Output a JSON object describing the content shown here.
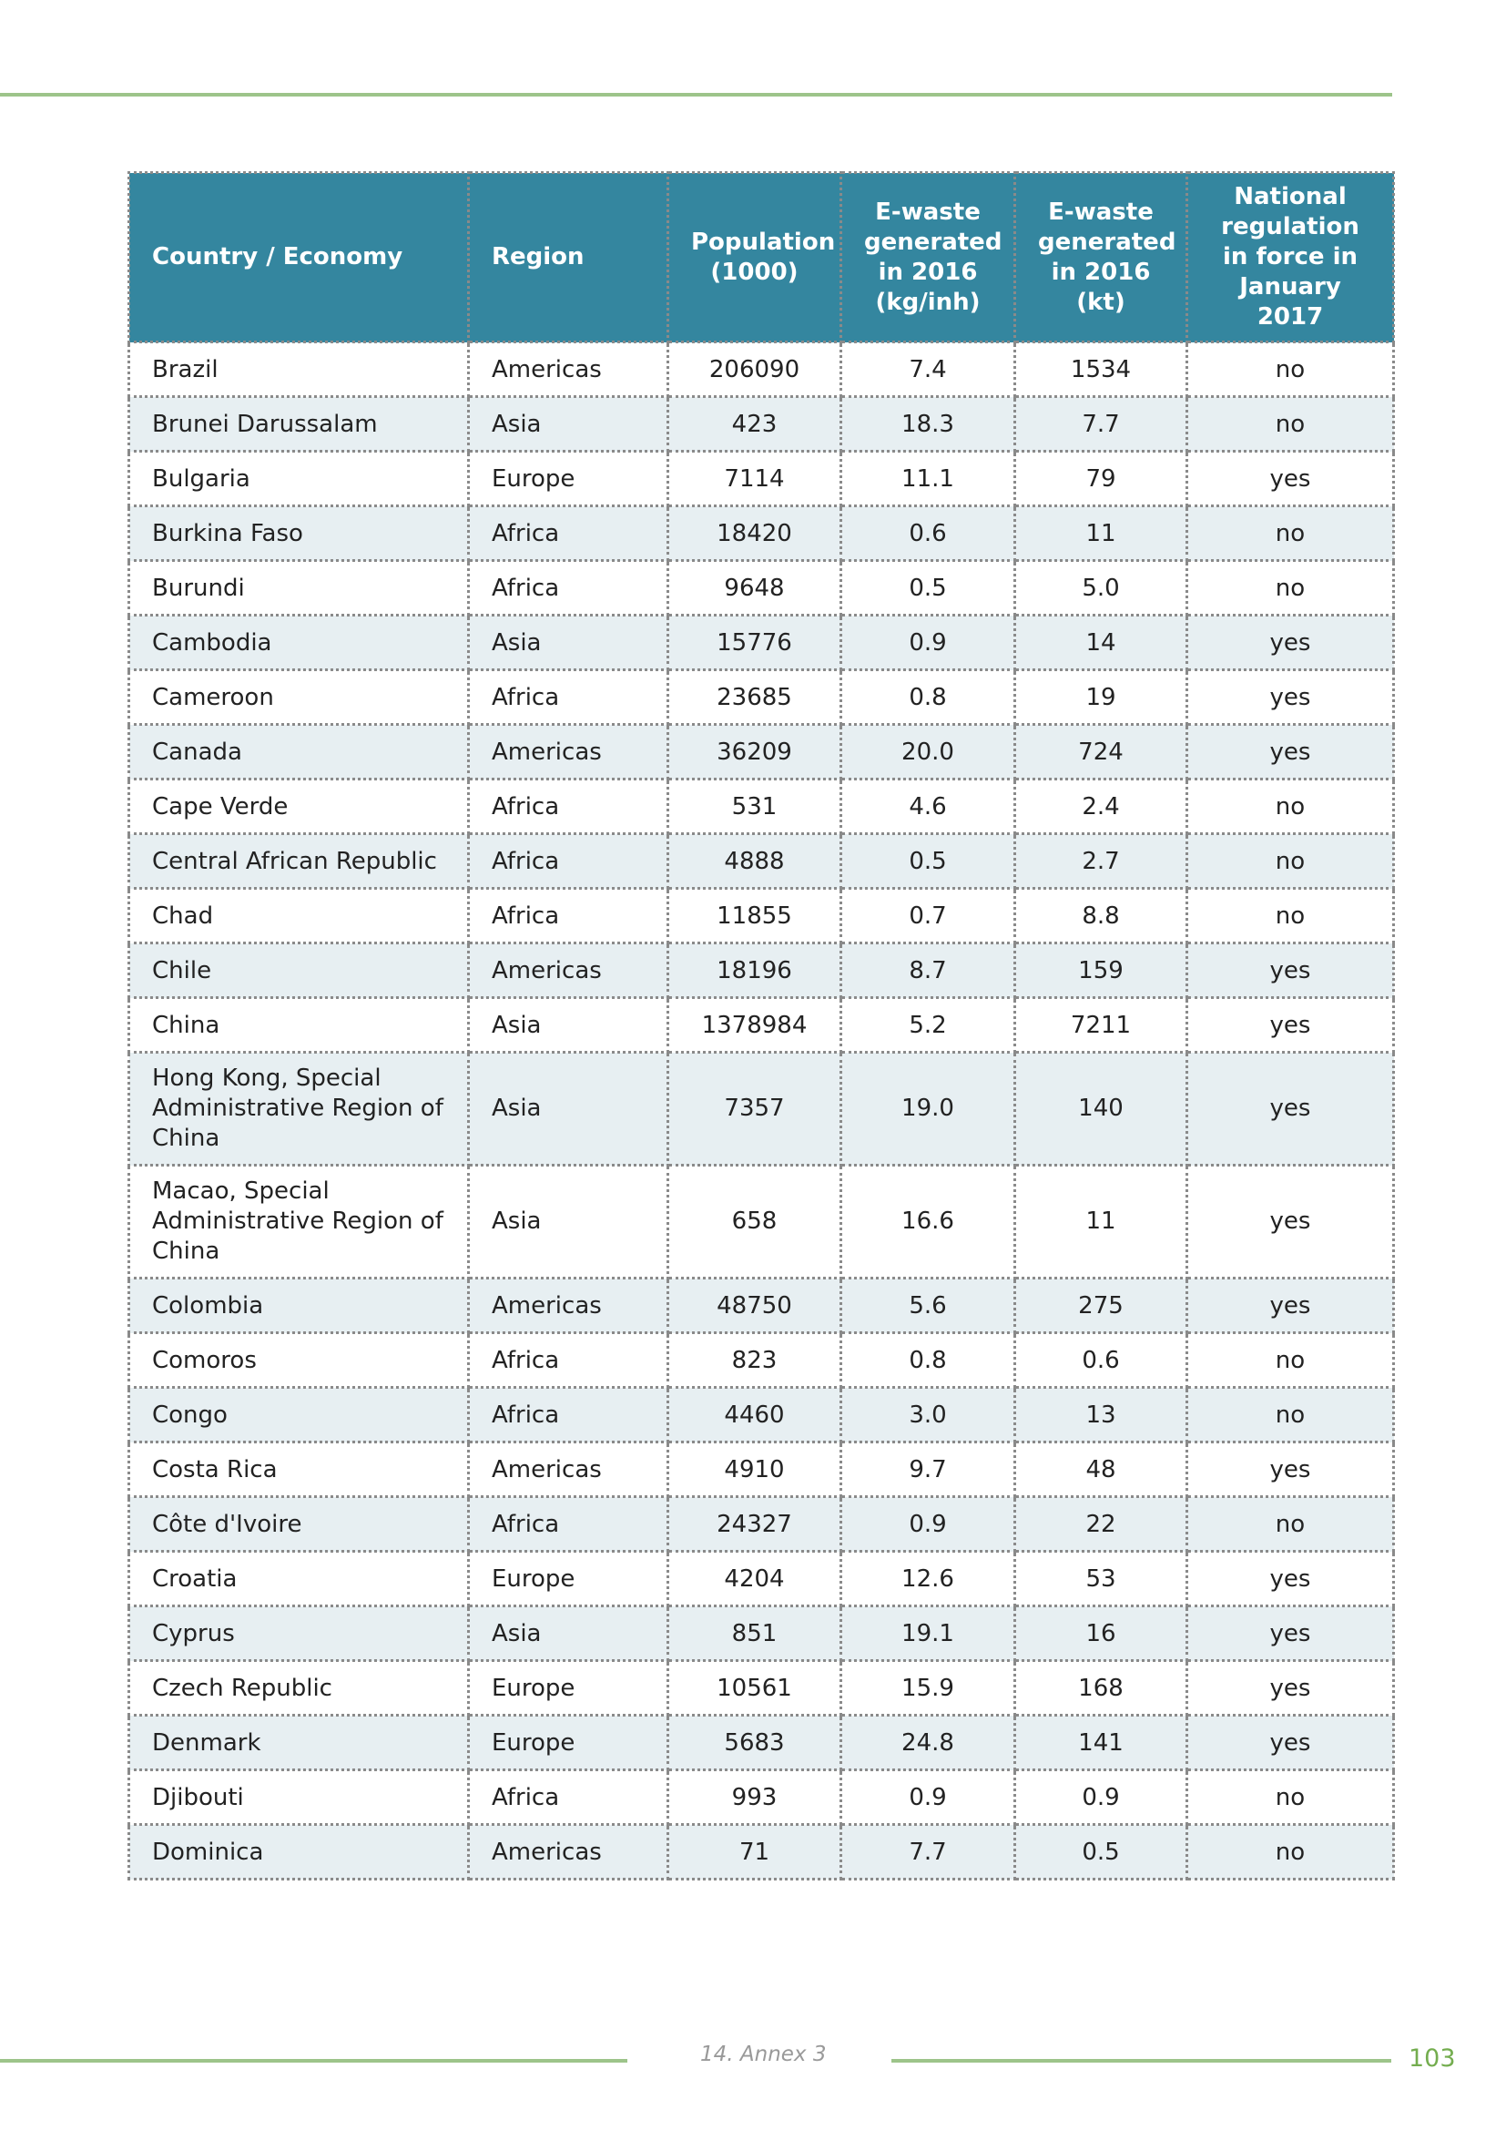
{
  "table": {
    "headers": [
      "Country / Economy",
      "Region",
      "Population (1000)",
      "E-waste generated in 2016 (kg/inh)",
      "E-waste generated in 2016 (kt)",
      "National regulation in force in January 2017"
    ],
    "rows": [
      [
        "Brazil",
        "Americas",
        "206090",
        "7.4",
        "1534",
        "no"
      ],
      [
        "Brunei Darussalam",
        "Asia",
        "423",
        "18.3",
        "7.7",
        "no"
      ],
      [
        "Bulgaria",
        "Europe",
        "7114",
        "11.1",
        "79",
        "yes"
      ],
      [
        "Burkina Faso",
        "Africa",
        "18420",
        "0.6",
        "11",
        "no"
      ],
      [
        "Burundi",
        "Africa",
        "9648",
        "0.5",
        "5.0",
        "no"
      ],
      [
        "Cambodia",
        "Asia",
        "15776",
        "0.9",
        "14",
        "yes"
      ],
      [
        "Cameroon",
        "Africa",
        "23685",
        "0.8",
        "19",
        "yes"
      ],
      [
        "Canada",
        "Americas",
        "36209",
        "20.0",
        "724",
        "yes"
      ],
      [
        "Cape Verde",
        "Africa",
        "531",
        "4.6",
        "2.4",
        "no"
      ],
      [
        "Central African Republic",
        "Africa",
        "4888",
        "0.5",
        "2.7",
        "no"
      ],
      [
        "Chad",
        "Africa",
        "11855",
        "0.7",
        "8.8",
        "no"
      ],
      [
        "Chile",
        "Americas",
        "18196",
        "8.7",
        "159",
        "yes"
      ],
      [
        "China",
        "Asia",
        "1378984",
        "5.2",
        "7211",
        "yes"
      ],
      [
        "Hong Kong, Special Administrative Region of China",
        "Asia",
        "7357",
        "19.0",
        "140",
        "yes"
      ],
      [
        "Macao, Special Administrative Region of China",
        "Asia",
        "658",
        "16.6",
        "11",
        "yes"
      ],
      [
        "Colombia",
        "Americas",
        "48750",
        "5.6",
        "275",
        "yes"
      ],
      [
        "Comoros",
        "Africa",
        "823",
        "0.8",
        "0.6",
        "no"
      ],
      [
        "Congo",
        "Africa",
        "4460",
        "3.0",
        "13",
        "no"
      ],
      [
        "Costa Rica",
        "Americas",
        "4910",
        "9.7",
        "48",
        "yes"
      ],
      [
        "Côte d'Ivoire",
        "Africa",
        "24327",
        "0.9",
        "22",
        "no"
      ],
      [
        "Croatia",
        "Europe",
        "4204",
        "12.6",
        "53",
        "yes"
      ],
      [
        "Cyprus",
        "Asia",
        "851",
        "19.1",
        "16",
        "yes"
      ],
      [
        "Czech Republic",
        "Europe",
        "10561",
        "15.9",
        "168",
        "yes"
      ],
      [
        "Denmark",
        "Europe",
        "5683",
        "24.8",
        "141",
        "yes"
      ],
      [
        "Djibouti",
        "Africa",
        "993",
        "0.9",
        "0.9",
        "no"
      ],
      [
        "Dominica",
        "Americas",
        "71",
        "7.7",
        "0.5",
        "no"
      ]
    ]
  },
  "footer": {
    "section": "14. Annex 3",
    "page": "103"
  },
  "colors": {
    "header": "#34869f",
    "accent": "#9dc48a",
    "alt_row": "#e7eff2"
  }
}
